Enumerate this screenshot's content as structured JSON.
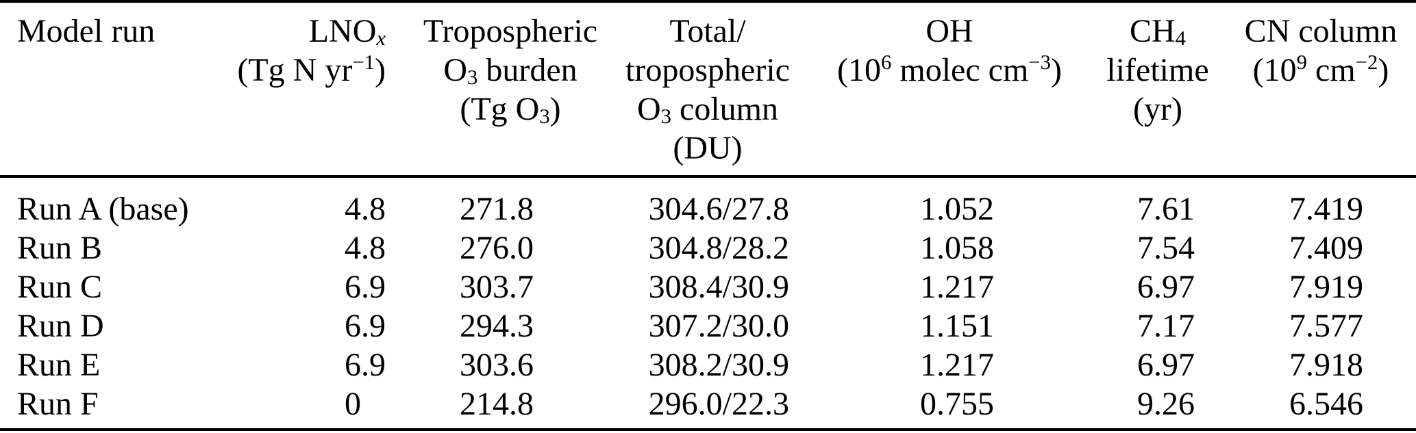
{
  "colors": {
    "background": "#ffffff",
    "text": "#000000",
    "rule": "#000000"
  },
  "table": {
    "columns": [
      {
        "id": "model-run",
        "lines": [
          "Model run"
        ]
      },
      {
        "id": "lnox",
        "lines": [
          "LNO_{x}",
          "(Tg N yr^{−1})"
        ]
      },
      {
        "id": "trop-o3-burden",
        "lines": [
          "Tropospheric",
          "O_{3} burden",
          "(Tg O_{3})"
        ]
      },
      {
        "id": "total-trop-o3-column",
        "lines": [
          "Total/",
          "tropospheric",
          "O_{3} column",
          "(DU)"
        ]
      },
      {
        "id": "oh",
        "lines": [
          "OH",
          "(10^{6} molec cm^{−3})"
        ]
      },
      {
        "id": "ch4-lifetime",
        "lines": [
          "CH_{4}",
          "lifetime",
          "(yr)"
        ]
      },
      {
        "id": "cn-column",
        "lines": [
          "CN column",
          "(10^{9} cm^{−2})"
        ]
      }
    ],
    "rows": [
      {
        "run": "Run A (base)",
        "lnox": "4.8",
        "burden": "271.8",
        "o3_column": "304.6/27.8",
        "oh": "1.052",
        "ch4_lifetime": "7.61",
        "cn": "7.419"
      },
      {
        "run": "Run B",
        "lnox": "4.8",
        "burden": "276.0",
        "o3_column": "304.8/28.2",
        "oh": "1.058",
        "ch4_lifetime": "7.54",
        "cn": "7.409"
      },
      {
        "run": "Run C",
        "lnox": "6.9",
        "burden": "303.7",
        "o3_column": "308.4/30.9",
        "oh": "1.217",
        "ch4_lifetime": "6.97",
        "cn": "7.919"
      },
      {
        "run": "Run D",
        "lnox": "6.9",
        "burden": "294.3",
        "o3_column": "307.2/30.0",
        "oh": "1.151",
        "ch4_lifetime": "7.17",
        "cn": "7.577"
      },
      {
        "run": "Run E",
        "lnox": "6.9",
        "burden": "303.6",
        "o3_column": "308.2/30.9",
        "oh": "1.217",
        "ch4_lifetime": "6.97",
        "cn": "7.918"
      },
      {
        "run": "Run F",
        "lnox": "0",
        "burden": "214.8",
        "o3_column": "296.0/22.3",
        "oh": "0.755",
        "ch4_lifetime": "9.26",
        "cn": "6.546"
      }
    ]
  }
}
